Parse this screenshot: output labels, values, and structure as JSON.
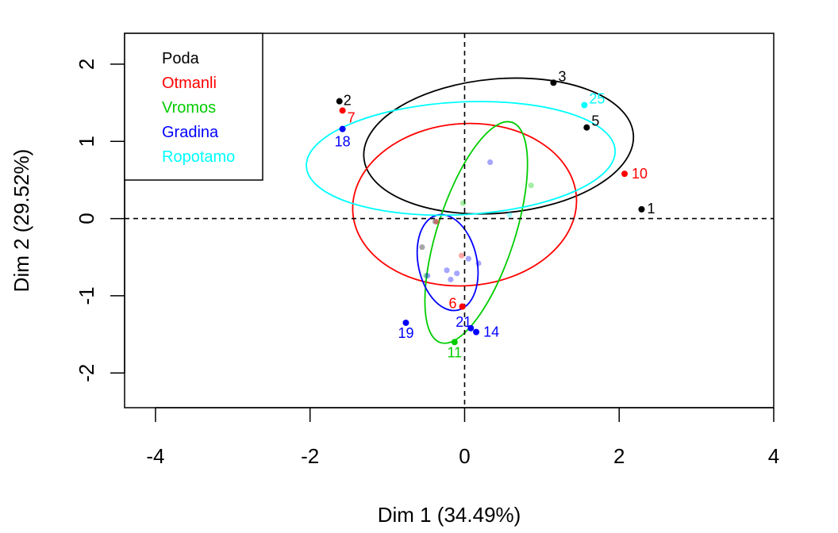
{
  "chart_data": {
    "type": "scatter",
    "xlabel": "Dim 1 (34.49%)",
    "ylabel": "Dim 2 (29.52%)",
    "xlim": [
      -4.4,
      4.0
    ],
    "ylim": [
      -2.45,
      2.4
    ],
    "xticks": [
      "-4",
      "-2",
      "0",
      "2",
      "4"
    ],
    "xtick_values": [
      -4,
      -2,
      0,
      2,
      4
    ],
    "yticks": [
      "-2",
      "-1",
      "0",
      "1",
      "2"
    ],
    "ytick_values": [
      -2,
      -1,
      0,
      1,
      2
    ],
    "reference_lines": {
      "x": 0,
      "y": 0,
      "style": "dashed"
    },
    "legend": {
      "placement": "top-left",
      "entries": [
        "Poda",
        "Otmanli",
        "Vromos",
        "Gradina",
        "Ropotamo"
      ]
    },
    "series": [
      {
        "name": "Poda",
        "color": "#000000",
        "points": [
          {
            "label": "1",
            "x": 2.29,
            "y": 0.12
          },
          {
            "label": "2",
            "x": -1.62,
            "y": 1.52
          },
          {
            "label": "3",
            "x": 1.15,
            "y": 1.76
          },
          {
            "label": "5",
            "x": 1.58,
            "y": 1.18
          }
        ],
        "faint_points": [
          {
            "x": -0.55,
            "y": -0.37
          },
          {
            "x": -0.38,
            "y": -0.04
          }
        ],
        "ellipse": {
          "cx": 0.44,
          "cy": 0.94,
          "rx": 1.75,
          "ry": 0.87,
          "angle": -5
        }
      },
      {
        "name": "Otmanli",
        "color": "#ff0000",
        "points": [
          {
            "label": "6",
            "x": -0.03,
            "y": -1.14
          },
          {
            "label": "7",
            "x": -1.58,
            "y": 1.4
          },
          {
            "label": "10",
            "x": 2.07,
            "y": 0.58
          }
        ],
        "faint_points": [
          {
            "x": -0.36,
            "y": -0.04
          },
          {
            "x": -0.04,
            "y": -0.48
          }
        ],
        "ellipse": {
          "cx": 0.0,
          "cy": 0.18,
          "rx": 1.45,
          "ry": 1.05,
          "angle": -4
        }
      },
      {
        "name": "Vromos",
        "color": "#00cd00",
        "points": [
          {
            "label": "11",
            "x": -0.13,
            "y": -1.6
          }
        ],
        "faint_points": [
          {
            "x": -0.02,
            "y": 0.2
          },
          {
            "x": 0.86,
            "y": 0.43
          },
          {
            "x": -0.5,
            "y": -0.74
          }
        ],
        "ellipse": {
          "cx": 0.15,
          "cy": -0.18,
          "rx": 0.5,
          "ry": 1.5,
          "angle": 18
        }
      },
      {
        "name": "Gradina",
        "color": "#0000ff",
        "points": [
          {
            "label": "14",
            "x": 0.15,
            "y": -1.47
          },
          {
            "label": "18",
            "x": -1.58,
            "y": 1.16
          },
          {
            "label": "19",
            "x": -0.76,
            "y": -1.35
          },
          {
            "label": "21",
            "x": 0.08,
            "y": -1.42
          }
        ],
        "faint_points": [
          {
            "x": 0.33,
            "y": 0.73
          },
          {
            "x": 0.05,
            "y": -0.52
          },
          {
            "x": 0.18,
            "y": -0.58
          },
          {
            "x": -0.23,
            "y": -0.67
          },
          {
            "x": -0.1,
            "y": -0.71
          },
          {
            "x": -0.18,
            "y": -0.79
          },
          {
            "x": -0.48,
            "y": -0.74
          }
        ],
        "ellipse": {
          "cx": -0.22,
          "cy": -0.57,
          "rx": 0.38,
          "ry": 0.63,
          "angle": -12
        }
      },
      {
        "name": "Ropotamo",
        "color": "#00ffff",
        "points": [
          {
            "label": "25",
            "x": 1.55,
            "y": 1.47
          }
        ],
        "faint_points": [
          {
            "x": 0.58,
            "y": 0.05
          }
        ],
        "ellipse": {
          "cx": -0.05,
          "cy": 0.78,
          "rx": 2.0,
          "ry": 0.73,
          "angle": -3
        }
      }
    ]
  }
}
